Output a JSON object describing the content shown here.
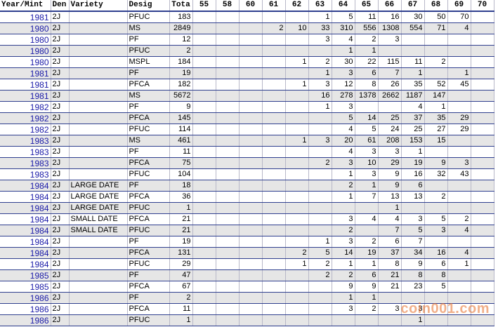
{
  "header": [
    "Year/Mint",
    "Den",
    "Variety",
    "Desig",
    "Tota",
    "55",
    "58",
    "60",
    "61",
    "62",
    "63",
    "64",
    "65",
    "66",
    "67",
    "68",
    "69",
    "70"
  ],
  "rows": [
    {
      "year": "1981",
      "den": "2J",
      "desig": "PFUC",
      "total": 183,
      "grades": [
        null,
        null,
        null,
        null,
        null,
        1,
        5,
        11,
        16,
        30,
        50,
        70,
        null
      ]
    },
    {
      "year": "1980",
      "den": "2J",
      "desig": "MS",
      "total": 2849,
      "grades": [
        null,
        null,
        null,
        2,
        10,
        33,
        310,
        556,
        1308,
        554,
        71,
        4,
        null
      ]
    },
    {
      "year": "1980",
      "den": "2J",
      "desig": "PF",
      "total": 12,
      "grades": [
        null,
        null,
        null,
        null,
        null,
        3,
        4,
        2,
        3,
        null,
        null,
        null,
        null
      ]
    },
    {
      "year": "1980",
      "den": "2J",
      "desig": "PFUC",
      "total": 2,
      "grades": [
        null,
        null,
        null,
        null,
        null,
        null,
        1,
        1,
        null,
        null,
        null,
        null,
        null
      ]
    },
    {
      "year": "1980",
      "den": "2J",
      "desig": "MSPL",
      "total": 184,
      "grades": [
        null,
        null,
        null,
        null,
        1,
        2,
        30,
        22,
        115,
        11,
        2,
        null,
        null
      ]
    },
    {
      "year": "1981",
      "den": "2J",
      "desig": "PF",
      "total": 19,
      "grades": [
        null,
        null,
        null,
        null,
        null,
        1,
        3,
        6,
        7,
        1,
        null,
        1,
        null
      ]
    },
    {
      "year": "1981",
      "den": "2J",
      "desig": "PFCA",
      "total": 182,
      "grades": [
        null,
        null,
        null,
        null,
        1,
        3,
        12,
        8,
        26,
        35,
        52,
        45,
        null
      ]
    },
    {
      "year": "1981",
      "den": "2J",
      "desig": "MS",
      "total": 5672,
      "grades": [
        null,
        null,
        null,
        null,
        null,
        16,
        278,
        1378,
        2662,
        1187,
        147,
        null,
        null
      ]
    },
    {
      "year": "1982",
      "den": "2J",
      "desig": "PF",
      "total": 9,
      "grades": [
        null,
        null,
        null,
        null,
        null,
        1,
        3,
        null,
        null,
        4,
        1,
        null,
        null
      ]
    },
    {
      "year": "1982",
      "den": "2J",
      "desig": "PFCA",
      "total": 145,
      "grades": [
        null,
        null,
        null,
        null,
        null,
        null,
        5,
        14,
        25,
        37,
        35,
        29,
        null
      ]
    },
    {
      "year": "1982",
      "den": "2J",
      "desig": "PFUC",
      "total": 114,
      "grades": [
        null,
        null,
        null,
        null,
        null,
        null,
        4,
        5,
        24,
        25,
        27,
        29,
        null
      ]
    },
    {
      "year": "1983",
      "den": "2J",
      "desig": "MS",
      "total": 461,
      "grades": [
        null,
        null,
        null,
        null,
        1,
        3,
        20,
        61,
        208,
        153,
        15,
        null,
        null
      ]
    },
    {
      "year": "1983",
      "den": "2J",
      "desig": "PF",
      "total": 11,
      "grades": [
        null,
        null,
        null,
        null,
        null,
        null,
        4,
        3,
        3,
        1,
        null,
        null,
        null
      ]
    },
    {
      "year": "1983",
      "den": "2J",
      "desig": "PFCA",
      "total": 75,
      "grades": [
        null,
        null,
        null,
        null,
        null,
        2,
        3,
        10,
        29,
        19,
        9,
        3,
        null
      ]
    },
    {
      "year": "1983",
      "den": "2J",
      "desig": "PFUC",
      "total": 104,
      "grades": [
        null,
        null,
        null,
        null,
        null,
        null,
        1,
        3,
        9,
        16,
        32,
        43,
        null
      ]
    },
    {
      "year": "1984",
      "den": "2J",
      "variety": "LARGE DATE",
      "desig": "PF",
      "total": 18,
      "grades": [
        null,
        null,
        null,
        null,
        null,
        null,
        2,
        1,
        9,
        6,
        null,
        null,
        null
      ]
    },
    {
      "year": "1984",
      "den": "2J",
      "variety": "LARGE DATE",
      "desig": "PFCA",
      "total": 36,
      "grades": [
        null,
        null,
        null,
        null,
        null,
        null,
        1,
        7,
        13,
        13,
        2,
        null,
        null
      ]
    },
    {
      "year": "1984",
      "den": "2J",
      "variety": "LARGE DATE",
      "desig": "PFUC",
      "total": 1,
      "grades": [
        null,
        null,
        null,
        null,
        null,
        null,
        null,
        null,
        1,
        null,
        null,
        null,
        null
      ]
    },
    {
      "year": "1984",
      "den": "2J",
      "variety": "SMALL DATE",
      "desig": "PFCA",
      "total": 21,
      "grades": [
        null,
        null,
        null,
        null,
        null,
        null,
        3,
        4,
        4,
        3,
        5,
        2,
        null
      ]
    },
    {
      "year": "1984",
      "den": "2J",
      "variety": "SMALL DATE",
      "desig": "PFUC",
      "total": 21,
      "grades": [
        null,
        null,
        null,
        null,
        null,
        null,
        2,
        null,
        7,
        5,
        3,
        4,
        null
      ]
    },
    {
      "year": "1984",
      "den": "2J",
      "desig": "PF",
      "total": 19,
      "grades": [
        null,
        null,
        null,
        null,
        null,
        1,
        3,
        2,
        6,
        7,
        null,
        null,
        null
      ]
    },
    {
      "year": "1984",
      "den": "2J",
      "desig": "PFCA",
      "total": 131,
      "grades": [
        null,
        null,
        null,
        null,
        2,
        5,
        14,
        19,
        37,
        34,
        16,
        4,
        null
      ]
    },
    {
      "year": "1984",
      "den": "2J",
      "desig": "PFUC",
      "total": 29,
      "grades": [
        null,
        null,
        null,
        null,
        1,
        2,
        1,
        1,
        8,
        9,
        6,
        1,
        null
      ]
    },
    {
      "year": "1985",
      "den": "2J",
      "desig": "PF",
      "total": 47,
      "grades": [
        null,
        null,
        null,
        null,
        null,
        2,
        2,
        6,
        21,
        8,
        8,
        null,
        null
      ]
    },
    {
      "year": "1985",
      "den": "2J",
      "desig": "PFCA",
      "total": 67,
      "grades": [
        null,
        null,
        null,
        null,
        null,
        null,
        9,
        9,
        21,
        23,
        5,
        null,
        null
      ]
    },
    {
      "year": "1986",
      "den": "2J",
      "desig": "PF",
      "total": 2,
      "grades": [
        null,
        null,
        null,
        null,
        null,
        null,
        1,
        1,
        null,
        null,
        null,
        null,
        null
      ]
    },
    {
      "year": "1986",
      "den": "2J",
      "desig": "PFCA",
      "total": 11,
      "grades": [
        null,
        null,
        null,
        null,
        null,
        null,
        3,
        2,
        3,
        3,
        null,
        null,
        null
      ]
    },
    {
      "year": "1986",
      "den": "2J",
      "desig": "PFUC",
      "total": 1,
      "grades": [
        null,
        null,
        null,
        null,
        null,
        null,
        null,
        null,
        null,
        1,
        null,
        null,
        null
      ]
    }
  ],
  "watermark": "coin001.com"
}
